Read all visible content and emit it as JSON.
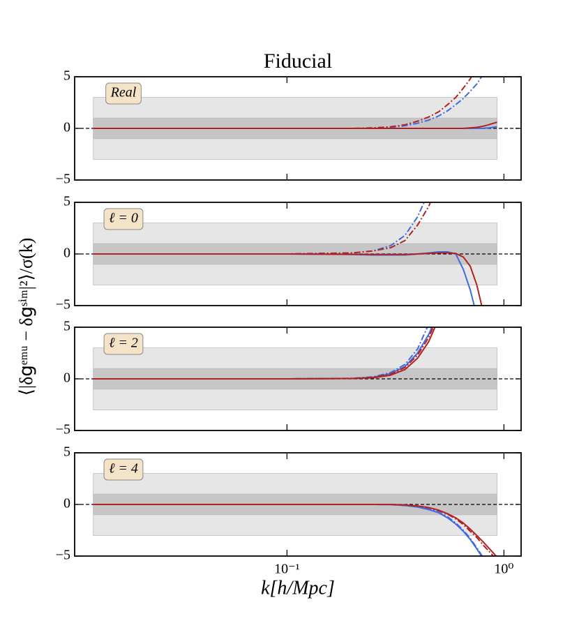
{
  "chart_data": [
    {
      "type": "line",
      "title": "Fiducial",
      "label": "Real",
      "log_x": true,
      "zero_line": true,
      "xlim": [
        0.0105,
        1.2
      ],
      "ylim": [
        -5,
        5
      ],
      "xticks": [
        0.1,
        1
      ],
      "yticks": [
        {
          "value": -5,
          "label": "−5"
        },
        0,
        5
      ],
      "band_xlim": [
        0.0128,
        0.93
      ],
      "bands": [
        {
          "ylim": [
            -3,
            3
          ],
          "color": "#e6e6e6"
        },
        {
          "ylim": [
            -1,
            1
          ],
          "color": "#c6c6c6"
        }
      ],
      "x": [
        0.0128,
        0.05,
        0.1,
        0.2,
        0.25,
        0.3,
        0.35,
        0.4,
        0.45,
        0.5,
        0.55,
        0.6,
        0.65,
        0.7,
        0.75,
        0.8,
        0.85,
        0.93
      ],
      "series": [
        {
          "color": "#4169e1",
          "dash": "dashdot",
          "values": [
            0,
            0,
            0,
            0,
            0.03,
            0.1,
            0.25,
            0.5,
            0.8,
            1.2,
            1.7,
            2.3,
            2.9,
            3.6,
            4.3,
            5.2,
            null,
            null
          ]
        },
        {
          "color": "#4169e1",
          "dash": "solid",
          "values": [
            0,
            0,
            0,
            0,
            0,
            0,
            0,
            0,
            0,
            0,
            0,
            0,
            0,
            0,
            0,
            0,
            0.05,
            0.15
          ]
        },
        {
          "color": "#b22222",
          "dash": "dashdot",
          "values": [
            0,
            0,
            0,
            0,
            0.05,
            0.15,
            0.35,
            0.7,
            1.1,
            1.6,
            2.3,
            3.0,
            3.9,
            4.8,
            6.0,
            null,
            null,
            null
          ]
        },
        {
          "color": "#b22222",
          "dash": "solid",
          "values": [
            0,
            0,
            0,
            0,
            0,
            0,
            0,
            0,
            0,
            0,
            0,
            0,
            0,
            0.05,
            0.1,
            0.2,
            0.35,
            0.6
          ]
        }
      ]
    },
    {
      "type": "line",
      "label": "ℓ = 0",
      "log_x": true,
      "zero_line": true,
      "ylabel": "⟨|δ𝗀ᵉᵐᵘ − δ𝗀ˢⁱᵐ|²⟩/σ(k)",
      "xlim": [
        0.0105,
        1.2
      ],
      "ylim": [
        -5,
        5
      ],
      "xticks": [
        0.1,
        1
      ],
      "yticks": [
        {
          "value": -5,
          "label": "−5"
        },
        0,
        5
      ],
      "band_xlim": [
        0.0128,
        0.93
      ],
      "bands": [
        {
          "ylim": [
            -3,
            3
          ],
          "color": "#e6e6e6"
        },
        {
          "ylim": [
            -1,
            1
          ],
          "color": "#c6c6c6"
        }
      ],
      "x": [
        0.0128,
        0.05,
        0.1,
        0.2,
        0.25,
        0.3,
        0.35,
        0.4,
        0.45,
        0.5,
        0.55,
        0.6,
        0.65,
        0.7,
        0.75,
        0.8,
        0.85,
        0.93
      ],
      "series": [
        {
          "color": "#4169e1",
          "dash": "dashdot",
          "values": [
            0,
            0,
            0,
            0.1,
            0.3,
            0.8,
            1.8,
            3.6,
            6.0,
            null,
            null,
            null,
            null,
            null,
            null,
            null,
            null,
            null
          ]
        },
        {
          "color": "#4169e1",
          "dash": "solid",
          "values": [
            0,
            0,
            0,
            -0.05,
            -0.1,
            -0.1,
            -0.1,
            0,
            0.1,
            0.2,
            0.2,
            0,
            -1.5,
            -3.5,
            -6.0,
            null,
            null,
            null
          ]
        },
        {
          "color": "#b22222",
          "dash": "dashdot",
          "values": [
            0,
            0,
            0,
            0.1,
            0.3,
            0.6,
            1.3,
            2.8,
            4.6,
            7.0,
            null,
            null,
            null,
            null,
            null,
            null,
            null,
            null
          ]
        },
        {
          "color": "#b22222",
          "dash": "solid",
          "values": [
            0,
            0,
            0,
            -0.03,
            -0.05,
            -0.05,
            -0.05,
            0,
            0.05,
            0.1,
            0.1,
            0.05,
            -0.3,
            -1.2,
            -3.0,
            -5.5,
            null,
            null
          ]
        }
      ]
    },
    {
      "type": "line",
      "label": "ℓ = 2",
      "log_x": true,
      "zero_line": true,
      "xlim": [
        0.0105,
        1.2
      ],
      "ylim": [
        -5,
        5
      ],
      "xticks": [
        0.1,
        1
      ],
      "yticks": [
        {
          "value": -5,
          "label": "−5"
        },
        0,
        5
      ],
      "band_xlim": [
        0.0128,
        0.93
      ],
      "bands": [
        {
          "ylim": [
            -3,
            3
          ],
          "color": "#e6e6e6"
        },
        {
          "ylim": [
            -1,
            1
          ],
          "color": "#c6c6c6"
        }
      ],
      "x": [
        0.0128,
        0.05,
        0.1,
        0.2,
        0.25,
        0.3,
        0.35,
        0.4,
        0.45,
        0.5,
        0.55,
        0.6,
        0.65,
        0.7,
        0.75,
        0.8,
        0.85,
        0.93
      ],
      "series": [
        {
          "color": "#4169e1",
          "dash": "dashdot",
          "values": [
            0,
            0,
            0,
            0.05,
            0.2,
            0.6,
            1.4,
            2.9,
            5.3,
            null,
            null,
            null,
            null,
            null,
            null,
            null,
            null,
            null
          ]
        },
        {
          "color": "#4169e1",
          "dash": "solid",
          "values": [
            0,
            0,
            0,
            0.04,
            0.15,
            0.5,
            1.2,
            2.5,
            4.3,
            6.5,
            null,
            null,
            null,
            null,
            null,
            null,
            null,
            null
          ]
        },
        {
          "color": "#b22222",
          "dash": "dashdot",
          "values": [
            0,
            0,
            0,
            0.04,
            0.15,
            0.45,
            1.1,
            2.3,
            4.0,
            6.2,
            null,
            null,
            null,
            null,
            null,
            null,
            null,
            null
          ]
        },
        {
          "color": "#b22222",
          "dash": "solid",
          "values": [
            0,
            0,
            0,
            0.03,
            0.1,
            0.35,
            0.9,
            2.0,
            3.6,
            5.8,
            null,
            null,
            null,
            null,
            null,
            null,
            null,
            null
          ]
        }
      ]
    },
    {
      "type": "line",
      "label": "ℓ = 4",
      "log_x": true,
      "zero_line": true,
      "xlabel": "k[h/Mpc]",
      "xlim": [
        0.0105,
        1.2
      ],
      "ylim": [
        -5,
        5
      ],
      "xticks": [
        {
          "value": 0.1,
          "label": "10⁻¹"
        },
        {
          "value": 1,
          "label": "10⁰"
        }
      ],
      "yticks": [
        {
          "value": -5,
          "label": "−5"
        },
        0,
        5
      ],
      "band_xlim": [
        0.0128,
        0.93
      ],
      "bands": [
        {
          "ylim": [
            -3,
            3
          ],
          "color": "#e6e6e6"
        },
        {
          "ylim": [
            -1,
            1
          ],
          "color": "#c6c6c6"
        }
      ],
      "x": [
        0.0128,
        0.05,
        0.1,
        0.2,
        0.25,
        0.3,
        0.35,
        0.4,
        0.45,
        0.5,
        0.55,
        0.6,
        0.65,
        0.7,
        0.75,
        0.8,
        0.85,
        0.93
      ],
      "series": [
        {
          "color": "#4169e1",
          "dash": "dashdot",
          "values": [
            0,
            0,
            0,
            0,
            0,
            -0.02,
            -0.1,
            -0.22,
            -0.45,
            -0.75,
            -1.2,
            -1.8,
            -2.5,
            -3.3,
            -4.2,
            -5.1,
            null,
            null
          ]
        },
        {
          "color": "#4169e1",
          "dash": "solid",
          "values": [
            0,
            0,
            0,
            0,
            0,
            -0.02,
            -0.1,
            -0.25,
            -0.5,
            -0.8,
            -1.3,
            -1.9,
            -2.6,
            -3.4,
            -4.3,
            -5.2,
            null,
            null
          ]
        },
        {
          "color": "#b22222",
          "dash": "dashdot",
          "values": [
            0,
            0,
            0,
            0,
            0,
            0,
            -0.05,
            -0.15,
            -0.32,
            -0.6,
            -0.95,
            -1.4,
            -1.95,
            -2.6,
            -3.2,
            -3.9,
            -4.5,
            -5.4
          ]
        },
        {
          "color": "#b22222",
          "dash": "solid",
          "values": [
            0,
            0,
            0,
            0,
            0,
            0,
            -0.05,
            -0.15,
            -0.3,
            -0.55,
            -0.9,
            -1.3,
            -1.8,
            -2.4,
            -3.0,
            -3.6,
            -4.2,
            -5.1
          ]
        }
      ]
    }
  ]
}
